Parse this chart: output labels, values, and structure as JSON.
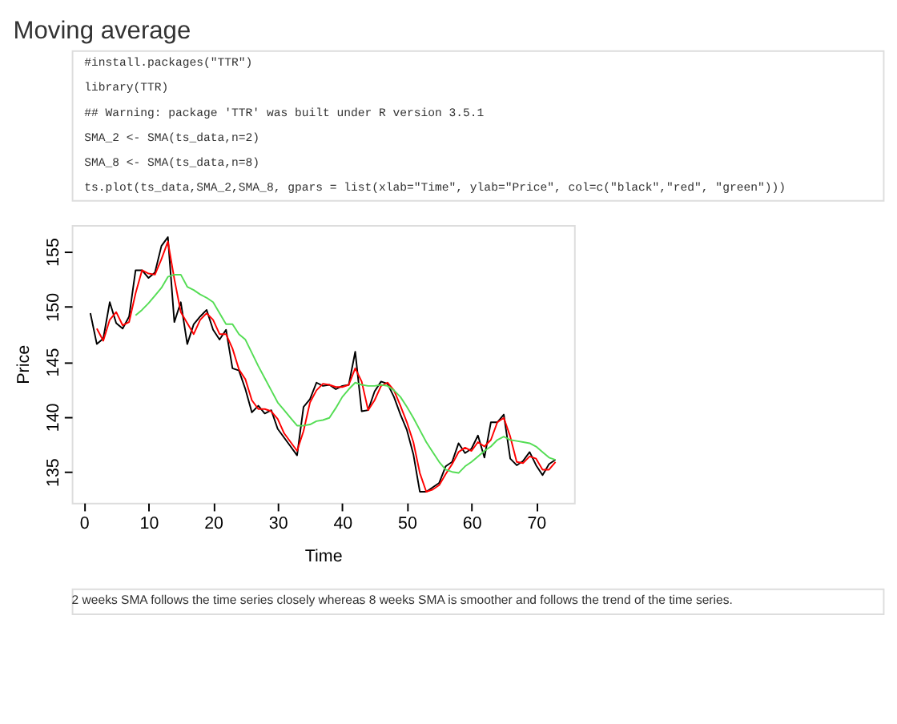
{
  "chart_data": {
    "type": "line",
    "title": "Moving average",
    "xlabel": "Time",
    "ylabel": "Price",
    "annotations": [
      "#install.packages(\"TTR\")",
      "library(TTR)",
      "## Warning: package 'TTR' was built under R version 3.5.1",
      "SMA_2 <- SMA(ts_data,n=2)",
      "SMA_8 <- SMA(ts_data,n=8)",
      "ts.plot(ts_data,SMA_2,SMA_8, gpars = list(xlab=\"Time\", ylab=\"Price\", col=c(\"black\",\"red\", \"green\")))",
      "2 weeks SMA follows the time series closely whereas 8 weeks SMA is smoother and follows the trend of the time series."
    ],
    "x": [
      1,
      2,
      3,
      4,
      5,
      6,
      7,
      8,
      9,
      10,
      11,
      12,
      13,
      14,
      15,
      16,
      17,
      18,
      19,
      20,
      21,
      22,
      23,
      24,
      25,
      26,
      27,
      28,
      29,
      30,
      31,
      32,
      33,
      34,
      35,
      36,
      37,
      38,
      39,
      40,
      41,
      42,
      43,
      44,
      45,
      46,
      47,
      48,
      49,
      50,
      51,
      52,
      53,
      54,
      55,
      56,
      57,
      58,
      59,
      60,
      61,
      62,
      63,
      64,
      65,
      66,
      67,
      68,
      69,
      70,
      71,
      72,
      73
    ],
    "series": [
      {
        "color": "#000000",
        "values": [
          149.4,
          146.6,
          147.1,
          150.4,
          148.5,
          148.0,
          149.1,
          153.3,
          153.3,
          152.6,
          153.1,
          155.5,
          156.3,
          148.6,
          150.4,
          146.6,
          148.4,
          149.1,
          149.7,
          147.9,
          147.0,
          147.9,
          144.4,
          144.2,
          142.5,
          140.4,
          141.0,
          140.3,
          140.6,
          138.9,
          138.1,
          137.3,
          136.5,
          140.9,
          141.6,
          143.1,
          142.8,
          142.9,
          142.5,
          142.8,
          142.9,
          145.9,
          140.5,
          140.6,
          142.3,
          143.2,
          143.0,
          141.8,
          140.2,
          138.8,
          136.6,
          133.2,
          133.2,
          133.6,
          134.0,
          135.5,
          135.9,
          137.6,
          136.7,
          137.1,
          138.3,
          136.3,
          139.5,
          139.5,
          140.2,
          136.2,
          135.6,
          136.0,
          136.8,
          135.6,
          134.7,
          135.7,
          136.1
        ]
      },
      {
        "color": "#ff0000",
        "values": [
          null,
          148.0,
          146.9,
          148.8,
          149.5,
          148.3,
          148.6,
          151.2,
          153.3,
          153.0,
          152.9,
          154.3,
          155.9,
          152.5,
          149.5,
          148.5,
          147.5,
          148.8,
          149.4,
          148.8,
          147.5,
          147.5,
          146.2,
          144.3,
          143.4,
          141.5,
          140.7,
          140.7,
          140.5,
          139.8,
          138.5,
          137.7,
          136.9,
          138.7,
          141.3,
          142.4,
          143.0,
          142.9,
          142.7,
          142.7,
          142.9,
          144.4,
          143.2,
          140.6,
          141.5,
          142.8,
          143.1,
          142.4,
          141.0,
          139.5,
          137.7,
          134.9,
          133.2,
          133.4,
          133.8,
          134.8,
          135.7,
          136.8,
          137.2,
          136.9,
          137.7,
          137.3,
          137.9,
          139.5,
          139.9,
          138.2,
          135.9,
          135.8,
          136.4,
          136.2,
          135.2,
          135.2,
          135.9
        ]
      },
      {
        "color": "#55dd55",
        "values": [
          null,
          null,
          null,
          null,
          null,
          null,
          null,
          149.2,
          149.7,
          150.3,
          151.0,
          151.7,
          152.7,
          152.9,
          152.9,
          151.8,
          151.5,
          151.1,
          150.8,
          150.4,
          149.4,
          148.4,
          148.4,
          147.5,
          147.0,
          145.8,
          144.6,
          143.5,
          142.4,
          141.3,
          140.6,
          139.9,
          139.2,
          139.2,
          139.3,
          139.6,
          139.7,
          139.9,
          140.8,
          141.8,
          142.5,
          143.1,
          142.9,
          142.8,
          142.8,
          142.9,
          142.8,
          142.4,
          141.8,
          140.9,
          139.9,
          138.8,
          137.7,
          136.8,
          135.9,
          135.2,
          135.0,
          134.9,
          135.5,
          135.9,
          136.4,
          136.9,
          137.3,
          137.9,
          138.2,
          137.9,
          137.8,
          137.7,
          137.6,
          137.3,
          136.8,
          136.3,
          136.1
        ]
      }
    ],
    "xlim": [
      -1.88,
      75.88
    ],
    "ylim": [
      132.2,
      157.4
    ],
    "xticks": [
      0,
      10,
      20,
      30,
      40,
      50,
      60,
      70
    ],
    "yticks": [
      135,
      140,
      145,
      150,
      155
    ],
    "grid": false,
    "legend": false,
    "marker": "none",
    "line_style": "solid"
  }
}
